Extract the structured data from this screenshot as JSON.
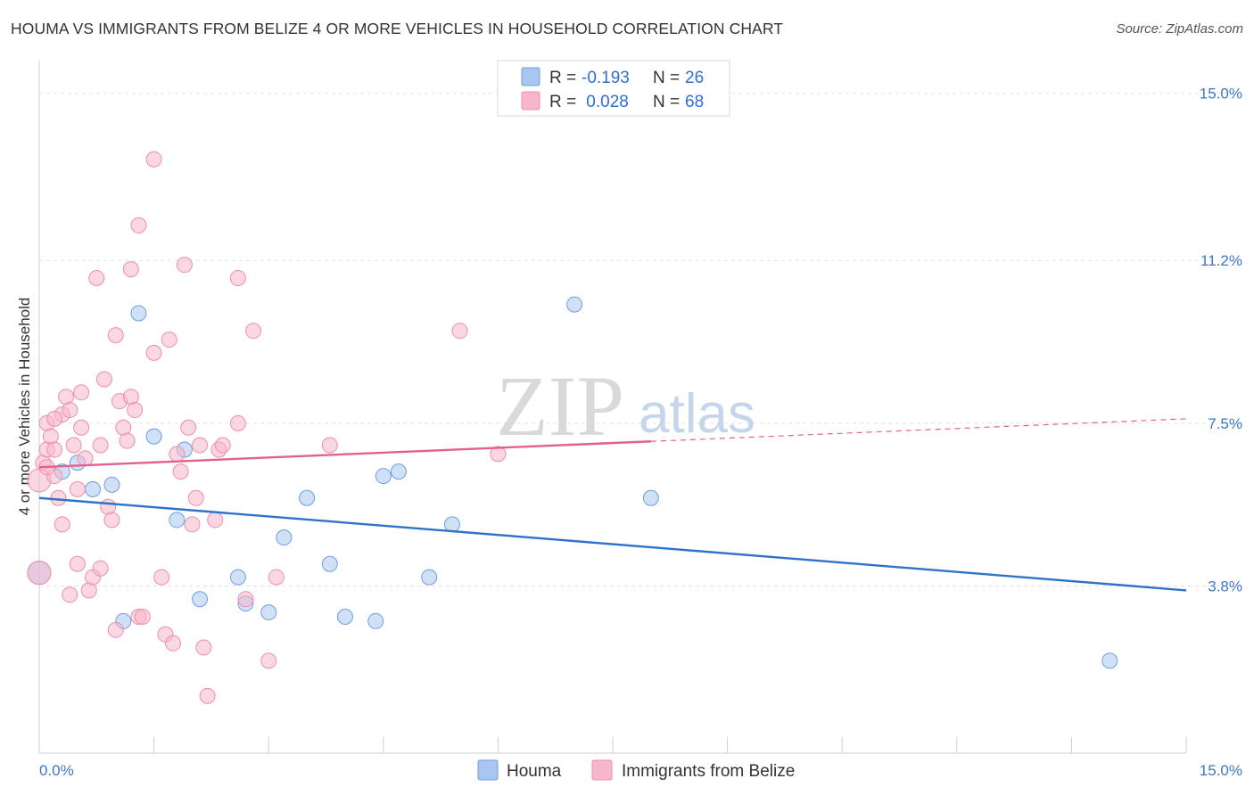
{
  "header": {
    "title": "HOUMA VS IMMIGRANTS FROM BELIZE 4 OR MORE VEHICLES IN HOUSEHOLD CORRELATION CHART",
    "source": "Source: ZipAtlas.com"
  },
  "watermark": {
    "zip": "ZIP",
    "atlas": "atlas"
  },
  "legend": {
    "rows": [
      {
        "r_label": "R = ",
        "r_value": "-0.193",
        "n_label": "N = ",
        "n_value": "26",
        "color": "#a9c6f0"
      },
      {
        "r_label": "R = ",
        "r_value": " 0.028",
        "n_label": "N = ",
        "n_value": "68",
        "color": "#f7b6ca"
      }
    ]
  },
  "bottom_legend": [
    {
      "label": "Houma",
      "color": "#a9c6f0"
    },
    {
      "label": "Immigrants from Belize",
      "color": "#f7b6ca"
    }
  ],
  "chart_data": {
    "type": "scatter",
    "title": "HOUMA VS IMMIGRANTS FROM BELIZE 4 OR MORE VEHICLES IN HOUSEHOLD CORRELATION CHART",
    "ylabel": "4 or more Vehicles in Household",
    "xlabel": "",
    "xlim": [
      0,
      15
    ],
    "ylim": [
      0,
      15.5
    ],
    "x_ticks": [
      "0.0%",
      "15.0%"
    ],
    "y_ticks": [
      {
        "value": 15.0,
        "label": "15.0%"
      },
      {
        "value": 11.2,
        "label": "11.2%"
      },
      {
        "value": 7.5,
        "label": "7.5%"
      },
      {
        "value": 3.8,
        "label": "3.8%"
      }
    ],
    "grid": true,
    "series": [
      {
        "name": "Houma",
        "color": "#a9c6f0",
        "stroke": "#6e9ee0",
        "trend_color": "#2f72cc",
        "trend": {
          "x0": 0.0,
          "y0": 5.8,
          "x1": 15.0,
          "y1": 3.7,
          "solid_until": 15.0
        },
        "points": [
          [
            0.0,
            4.1
          ],
          [
            0.3,
            6.4
          ],
          [
            0.5,
            6.6
          ],
          [
            0.7,
            6.0
          ],
          [
            0.95,
            6.1
          ],
          [
            1.1,
            3.0
          ],
          [
            1.3,
            10.0
          ],
          [
            1.5,
            7.2
          ],
          [
            1.8,
            5.3
          ],
          [
            1.9,
            6.9
          ],
          [
            2.1,
            3.5
          ],
          [
            2.6,
            4.0
          ],
          [
            2.7,
            3.4
          ],
          [
            3.0,
            3.2
          ],
          [
            3.2,
            4.9
          ],
          [
            3.5,
            5.8
          ],
          [
            3.8,
            4.3
          ],
          [
            4.0,
            3.1
          ],
          [
            4.4,
            3.0
          ],
          [
            4.5,
            6.3
          ],
          [
            4.7,
            6.4
          ],
          [
            5.1,
            4.0
          ],
          [
            5.4,
            5.2
          ],
          [
            7.0,
            10.2
          ],
          [
            8.0,
            5.8
          ],
          [
            14.0,
            2.1
          ]
        ]
      },
      {
        "name": "Immigrants from Belize",
        "color": "#f7b6ca",
        "stroke": "#ec8fab",
        "trend_color": "#e4608c",
        "trend": {
          "x0": 0.0,
          "y0": 6.5,
          "x1": 15.0,
          "y1": 7.6,
          "solid_until": 8.0
        },
        "points": [
          [
            0.0,
            6.2
          ],
          [
            0.0,
            4.1
          ],
          [
            0.05,
            6.6
          ],
          [
            0.1,
            7.5
          ],
          [
            0.1,
            6.9
          ],
          [
            0.15,
            7.2
          ],
          [
            0.2,
            6.3
          ],
          [
            0.2,
            6.9
          ],
          [
            0.25,
            5.8
          ],
          [
            0.3,
            5.2
          ],
          [
            0.3,
            7.7
          ],
          [
            0.35,
            8.1
          ],
          [
            0.4,
            7.8
          ],
          [
            0.4,
            3.6
          ],
          [
            0.45,
            7.0
          ],
          [
            0.5,
            6.0
          ],
          [
            0.5,
            4.3
          ],
          [
            0.55,
            8.2
          ],
          [
            0.55,
            7.4
          ],
          [
            0.6,
            6.7
          ],
          [
            0.65,
            3.7
          ],
          [
            0.7,
            4.0
          ],
          [
            0.75,
            10.8
          ],
          [
            0.8,
            7.0
          ],
          [
            0.8,
            4.2
          ],
          [
            0.85,
            8.5
          ],
          [
            0.9,
            5.6
          ],
          [
            0.95,
            5.3
          ],
          [
            1.0,
            2.8
          ],
          [
            1.0,
            9.5
          ],
          [
            1.05,
            8.0
          ],
          [
            1.1,
            7.4
          ],
          [
            1.15,
            7.1
          ],
          [
            1.2,
            8.1
          ],
          [
            1.2,
            11.0
          ],
          [
            1.25,
            7.8
          ],
          [
            1.3,
            12.0
          ],
          [
            1.3,
            3.1
          ],
          [
            1.35,
            3.1
          ],
          [
            1.5,
            13.5
          ],
          [
            1.5,
            9.1
          ],
          [
            1.6,
            4.0
          ],
          [
            1.65,
            2.7
          ],
          [
            1.7,
            9.4
          ],
          [
            1.75,
            2.5
          ],
          [
            1.8,
            6.8
          ],
          [
            1.85,
            6.4
          ],
          [
            1.9,
            11.1
          ],
          [
            1.95,
            7.4
          ],
          [
            2.0,
            5.2
          ],
          [
            2.05,
            5.8
          ],
          [
            2.1,
            7.0
          ],
          [
            2.15,
            2.4
          ],
          [
            2.2,
            1.3
          ],
          [
            2.3,
            5.3
          ],
          [
            2.35,
            6.9
          ],
          [
            2.4,
            7.0
          ],
          [
            2.6,
            7.5
          ],
          [
            2.6,
            10.8
          ],
          [
            2.7,
            3.5
          ],
          [
            2.8,
            9.6
          ],
          [
            3.0,
            2.1
          ],
          [
            3.1,
            4.0
          ],
          [
            3.8,
            7.0
          ],
          [
            5.5,
            9.6
          ],
          [
            6.0,
            6.8
          ],
          [
            0.1,
            6.5
          ],
          [
            0.2,
            7.6
          ]
        ]
      }
    ]
  }
}
